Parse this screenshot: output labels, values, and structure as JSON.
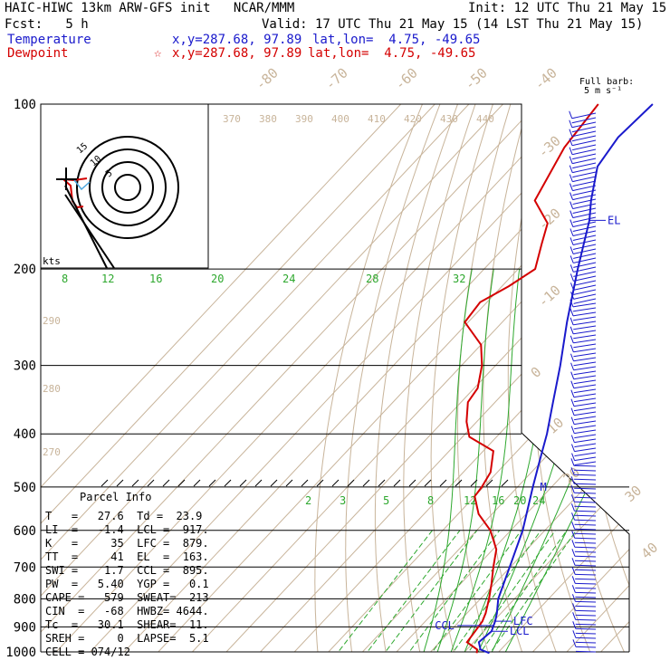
{
  "header": {
    "line1_left": "HAIC-HIWC 13km ARW-GFS init   NCAR/MMM",
    "line1_right": "Init: 12 UTC Thu 21 May 15",
    "line2_left": "Fcst:   5 h",
    "line2_right": "Valid: 17 UTC Thu 21 May 15 (14 LST Thu 21 May 15)",
    "temp_label": "Temperature",
    "temp_xy": "x,y=287.68, 97.89",
    "temp_latlon": "lat,lon=  4.75, -49.65",
    "dew_label": "Dewpoint",
    "dew_star": "☆",
    "dew_xy": "x,y=287.68, 97.89",
    "dew_latlon": "lat,lon=  4.75, -49.65"
  },
  "barb_header": {
    "line1": "Full barb:",
    "line2": "5 m s⁻¹"
  },
  "parcel_info": {
    "title": "Parcel Info",
    "rows": [
      "T   =   27.6  Td =  23.9",
      "LI  =   -1.4  LCL =  917.",
      "K   =     35  LFC =  879.",
      "TT  =     41  EL  =  163.",
      "SWI =    1.7  CCL =  895.",
      "PW  =   5.40  YGP =   0.1",
      "CAPE =   579  SWEAT=  213",
      "CIN  =   -68  HWBZ= 4644.",
      "Tc  =   30.1  SHEAR=  11.",
      "SREH =     0  LAPSE=  5.1",
      "CELL = 074/12"
    ]
  },
  "hodograph": {
    "units": "kts",
    "ring_labels": [
      "5",
      "10",
      "15"
    ]
  },
  "chart_data": {
    "type": "line",
    "title": "HAIC-HIWC 13km ARW-GFS init",
    "xlabel": "",
    "ylabel": "",
    "y_scale": "log",
    "pressure_ticks": [
      100,
      200,
      300,
      400,
      500,
      600,
      700,
      800,
      900,
      1000
    ],
    "isotherm_labels_top": [
      -80,
      -70,
      -60,
      -50,
      -40
    ],
    "isotherm_labels_right": [
      -30,
      -20,
      -10,
      0,
      10,
      20,
      30,
      40
    ],
    "dry_adiabat_labels_upper": [
      370,
      380,
      390,
      400,
      410,
      420,
      430,
      440
    ],
    "dry_adiabat_labels_left": [
      290,
      280,
      270
    ],
    "moist_adiabat_labels": [
      8,
      12,
      16,
      20,
      24,
      28,
      32
    ],
    "mixing_ratio_labels": [
      2,
      3,
      5,
      8,
      12,
      16,
      20,
      24
    ],
    "level_markers": [
      {
        "label": "EL",
        "p": 163
      },
      {
        "label": "M",
        "p": 500
      },
      {
        "label": "LFC",
        "p": 879
      },
      {
        "label": "CCL",
        "p": 895
      },
      {
        "label": "LCL",
        "p": 917
      }
    ],
    "series": [
      {
        "name": "Temperature",
        "color": "#1a1acc",
        "p": [
          1005,
          990,
          960,
          917,
          879,
          850,
          800,
          700,
          600,
          500,
          450,
          400,
          350,
          300,
          250,
          200,
          163,
          150,
          130,
          115,
          100
        ],
        "t": [
          27.6,
          24.0,
          21.5,
          22.2,
          20.5,
          18.8,
          15.2,
          9.8,
          3.5,
          -5.5,
          -10.5,
          -16.0,
          -23.0,
          -31.0,
          -41.0,
          -52.5,
          -62.5,
          -67.5,
          -75.0,
          -77.0,
          -76.0
        ]
      },
      {
        "name": "Dewpoint",
        "color": "#d40000",
        "p": [
          1005,
          990,
          960,
          917,
          880,
          850,
          800,
          750,
          700,
          650,
          600,
          560,
          520,
          500,
          470,
          430,
          405,
          380,
          350,
          330,
          300,
          275,
          250,
          230,
          215,
          200,
          180,
          165,
          150,
          120,
          100
        ],
        "t": [
          23.9,
          23.0,
          18.0,
          17.4,
          16.8,
          15.5,
          12.5,
          9.0,
          5.0,
          1.0,
          -6.0,
          -14.0,
          -20.0,
          -20.5,
          -22.0,
          -27.0,
          -38.0,
          -43.0,
          -48.0,
          -49.0,
          -54.0,
          -60.0,
          -71.0,
          -72.0,
          -68.0,
          -65.0,
          -70.0,
          -74.0,
          -84.0,
          -90.0,
          -92.0
        ]
      }
    ]
  }
}
